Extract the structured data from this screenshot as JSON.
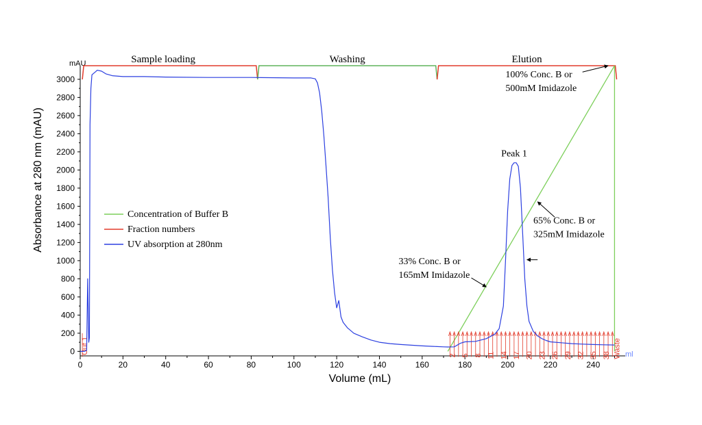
{
  "chart_data": {
    "type": "line",
    "xlabel": "Volume (mL)",
    "ylabel": "Absorbance at 280 nm (mAU)",
    "y_unit_label": "mAU",
    "x_unit_label": "ml",
    "xlim": [
      0,
      255
    ],
    "ylim": [
      -50,
      3150
    ],
    "x_ticks": [
      0,
      20,
      40,
      60,
      80,
      100,
      120,
      140,
      160,
      180,
      200,
      220,
      240
    ],
    "y_ticks": [
      0,
      200,
      400,
      600,
      800,
      1000,
      1200,
      1400,
      1600,
      1800,
      2000,
      2200,
      2400,
      2600,
      2800,
      3000
    ],
    "colors": {
      "uv": "#2b3fe0",
      "fraction": "#e23a2a",
      "buffer_b": "#7ccf5a"
    },
    "legend": {
      "placement": "left-middle",
      "entries": [
        {
          "key": "buffer_b",
          "label": "Concentration of Buffer B"
        },
        {
          "key": "fraction",
          "label": "Fraction numbers"
        },
        {
          "key": "uv",
          "label": "UV absorption at 280nm"
        }
      ]
    },
    "regions": [
      {
        "label": "Sample loading",
        "x_start": 1,
        "x_end": 83,
        "color": "#e23a2a"
      },
      {
        "label": "Washing",
        "x_start": 83,
        "x_end": 167,
        "color": "#5fb35a"
      },
      {
        "label": "Elution",
        "x_start": 167,
        "x_end": 251,
        "color": "#e23a2a"
      }
    ],
    "uv_series": {
      "name": "UV absorption at 280nm",
      "x": [
        0,
        1,
        2,
        3,
        3.5,
        4,
        4.3,
        4.6,
        5,
        5.5,
        6,
        7,
        8,
        10,
        12,
        15,
        20,
        30,
        40,
        60,
        80,
        100,
        108,
        110,
        111,
        112,
        113,
        114,
        115,
        116,
        117,
        118,
        119,
        120,
        121,
        122,
        123,
        125,
        128,
        132,
        136,
        140,
        145,
        150,
        155,
        160,
        165,
        170,
        172,
        175,
        178,
        180,
        185,
        190,
        194,
        196,
        198,
        199,
        200,
        201,
        202,
        203,
        204,
        205,
        206,
        207,
        208,
        209,
        210,
        212,
        214,
        216,
        218,
        220,
        225,
        230,
        235,
        240,
        245,
        250
      ],
      "y": [
        0,
        0,
        0,
        10,
        800,
        100,
        150,
        2500,
        2900,
        3050,
        3060,
        3080,
        3100,
        3090,
        3060,
        3040,
        3030,
        3030,
        3025,
        3020,
        3020,
        3015,
        3015,
        3005,
        2960,
        2850,
        2650,
        2380,
        2050,
        1700,
        1250,
        900,
        650,
        480,
        560,
        380,
        320,
        260,
        200,
        160,
        125,
        100,
        85,
        75,
        68,
        60,
        55,
        50,
        48,
        50,
        90,
        105,
        110,
        140,
        190,
        250,
        500,
        1000,
        1550,
        1900,
        2050,
        2080,
        2080,
        2040,
        1800,
        1300,
        800,
        500,
        330,
        220,
        170,
        140,
        120,
        105,
        95,
        85,
        80,
        75,
        72,
        70
      ]
    },
    "buffer_b_series": {
      "name": "Concentration of Buffer B",
      "x": [
        172,
        250
      ],
      "y": [
        0,
        3150
      ],
      "drop_to_zero_at": 250
    },
    "fraction_ticks_x": [
      173,
      175,
      177,
      179,
      181,
      183,
      185,
      187,
      189,
      191,
      193,
      195,
      197,
      199,
      201,
      203,
      205,
      207,
      209,
      211,
      213,
      215,
      217,
      219,
      221,
      223,
      225,
      227,
      229,
      231,
      233,
      235,
      237,
      239,
      241,
      243,
      245,
      247,
      249
    ],
    "fraction_labels": [
      {
        "text": "Out 1",
        "x": 2
      },
      {
        "text": "2",
        "x": 174
      },
      {
        "text": "5",
        "x": 180
      },
      {
        "text": "8",
        "x": 186
      },
      {
        "text": "11",
        "x": 192
      },
      {
        "text": "14",
        "x": 198
      },
      {
        "text": "17",
        "x": 204
      },
      {
        "text": "20",
        "x": 210
      },
      {
        "text": "23",
        "x": 216
      },
      {
        "text": "26",
        "x": 222
      },
      {
        "text": "29",
        "x": 228
      },
      {
        "text": "32",
        "x": 234
      },
      {
        "text": "35",
        "x": 240
      },
      {
        "text": "38",
        "x": 246
      },
      {
        "text": "Waste",
        "x": 251
      }
    ],
    "annotations": [
      {
        "id": "peak",
        "line1": "Peak 1",
        "line2": "",
        "text_x": 197,
        "text_y": 2150
      },
      {
        "id": "c100",
        "line1": "100% Conc. B or",
        "line2": "500mM Imidazole",
        "text_x": 199,
        "text_y": 3020,
        "arrow_from": [
          235,
          3080
        ],
        "arrow_to": [
          247,
          3150
        ]
      },
      {
        "id": "c65",
        "line1": "65% Conc. B or",
        "line2": "325mM Imidazole",
        "text_x": 212,
        "text_y": 1410,
        "arrow_from": [
          222,
          1480
        ],
        "arrow_to": [
          214,
          1650
        ]
      },
      {
        "id": "c65b",
        "line1": "",
        "line2": "",
        "arrow_from": [
          214,
          1010
        ],
        "arrow_to": [
          209,
          1010
        ]
      },
      {
        "id": "c33",
        "line1": "33% Conc. B or",
        "line2": "165mM Imidazole",
        "text_x": 149,
        "text_y": 960,
        "arrow_from": [
          183,
          810
        ],
        "arrow_to": [
          190,
          710
        ]
      }
    ]
  }
}
